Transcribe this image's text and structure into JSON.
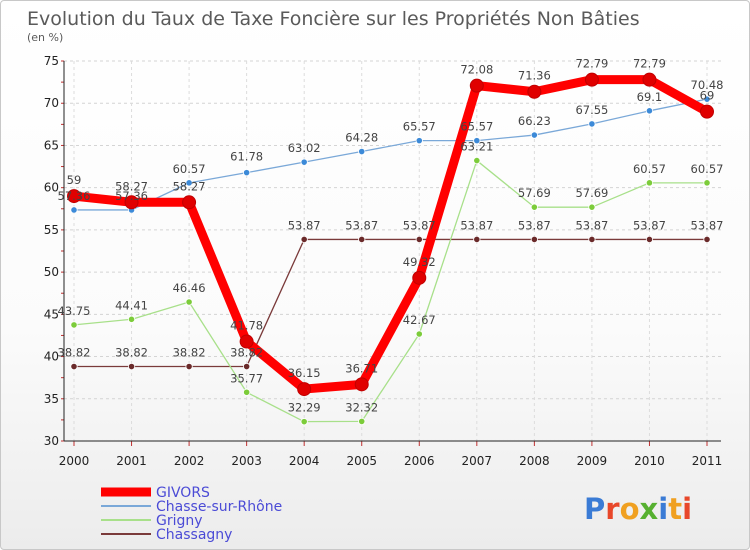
{
  "chart_data": {
    "type": "line",
    "title": "Evolution du Taux de Taxe Foncière sur les Propriétés Non Bâties",
    "subtitle": "(en %)",
    "xlabel": "",
    "ylabel": "",
    "ylim": [
      30,
      75
    ],
    "y_ticks": [
      "30",
      "35",
      "40",
      "45",
      "50",
      "55",
      "60",
      "65",
      "70",
      "75"
    ],
    "categories": [
      "2000",
      "2001",
      "2002",
      "2003",
      "2004",
      "2005",
      "2006",
      "2007",
      "2008",
      "2009",
      "2010",
      "2011"
    ],
    "grid": true,
    "legend_position": "bottom-left",
    "series": [
      {
        "name": "GIVORS",
        "color": "#ff0000",
        "point_color": "#e00000",
        "values": [
          59,
          58.27,
          58.27,
          41.78,
          36.15,
          36.71,
          49.32,
          72.08,
          71.36,
          72.79,
          72.79,
          69
        ],
        "labels": [
          "59",
          "58.27",
          "58.27",
          "41.78",
          "36.15",
          "36.71",
          "49.32",
          "72.08",
          "71.36",
          "72.79",
          "72.79",
          "69"
        ]
      },
      {
        "name": "Chasse-sur-Rhône",
        "color": "#7aa8d8",
        "point_color": "#3c8ad8",
        "values": [
          57.36,
          57.36,
          60.57,
          61.78,
          63.02,
          64.28,
          65.57,
          65.57,
          66.23,
          67.55,
          69.1,
          70.48
        ],
        "labels": [
          "57.36",
          "57.36",
          "60.57",
          "61.78",
          "63.02",
          "64.28",
          "65.57",
          "65.57",
          "66.23",
          "67.55",
          "69.1",
          "70.48"
        ]
      },
      {
        "name": "Grigny",
        "color": "#a8e08a",
        "point_color": "#7ccc3a",
        "values": [
          43.75,
          44.41,
          46.46,
          35.77,
          32.29,
          32.32,
          42.67,
          63.21,
          57.69,
          57.69,
          60.57,
          60.57
        ],
        "labels": [
          "43.75",
          "44.41",
          "46.46",
          "35.77",
          "32.29",
          "32.32",
          "42.67",
          "63.21",
          "57.69",
          "57.69",
          "60.57",
          "60.57"
        ]
      },
      {
        "name": "Chassagny",
        "color": "#7a3a3a",
        "point_color": "#6a2a2a",
        "values": [
          38.82,
          38.82,
          38.82,
          38.82,
          53.87,
          53.87,
          53.87,
          53.87,
          53.87,
          53.87,
          53.87,
          53.87
        ],
        "labels": [
          "38.82",
          "38.82",
          "38.82",
          "38.82",
          "53.87",
          "53.87",
          "53.87",
          "53.87",
          "53.87",
          "53.87",
          "53.87",
          "53.87"
        ]
      }
    ]
  },
  "logo": {
    "text": "Proxiti",
    "letter_colors": [
      "#3a7bd5",
      "#e8472a",
      "#f0a020",
      "#56b030",
      "#3a7bd5",
      "#f0a020",
      "#e8472a"
    ]
  }
}
